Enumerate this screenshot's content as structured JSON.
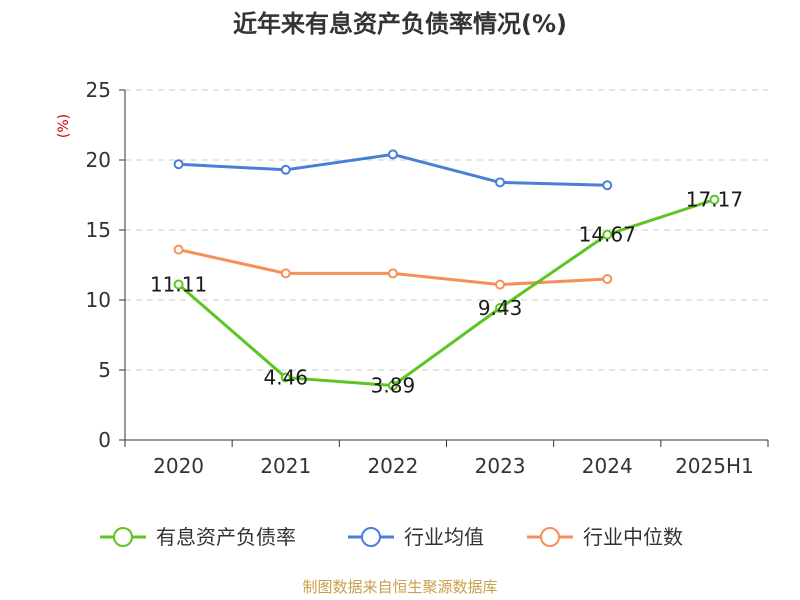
{
  "chart_data": {
    "type": "line",
    "title": "近年来有息资产负债率情况(%)",
    "unit_label": "(%)",
    "categories": [
      "2020",
      "2021",
      "2022",
      "2023",
      "2024",
      "2025H1"
    ],
    "ylim": [
      0,
      25
    ],
    "yticks": [
      "0",
      "5",
      "10",
      "15",
      "20",
      "25"
    ],
    "grid": true,
    "legend_position": "bottom",
    "series": [
      {
        "name": "有息资产负债率",
        "color": "#5cc520",
        "values": [
          11.11,
          4.46,
          3.89,
          9.43,
          14.67,
          17.17
        ],
        "labels": [
          "11.11",
          "4.46",
          "3.89",
          "9.43",
          "14.67",
          "17.17"
        ]
      },
      {
        "name": "行业均值",
        "color": "#4a7fd6",
        "values": [
          19.7,
          19.3,
          20.4,
          18.4,
          18.2,
          null
        ]
      },
      {
        "name": "行业中位数",
        "color": "#f5905a",
        "values": [
          13.6,
          11.9,
          11.9,
          11.1,
          11.5,
          null
        ]
      }
    ]
  },
  "source": "制图数据来自恒生聚源数据库"
}
